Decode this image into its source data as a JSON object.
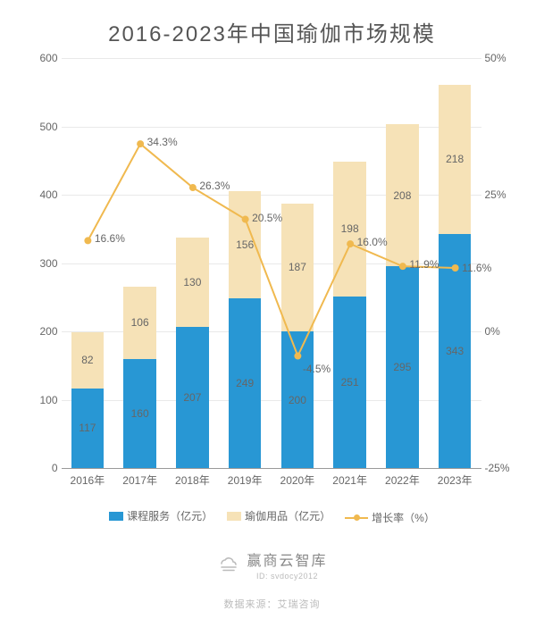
{
  "title": {
    "text": "2016-2023年中国瑜伽市场规模",
    "fontsize": 24,
    "color": "#555555"
  },
  "chart": {
    "type": "stacked-bar-plus-line",
    "categories": [
      "2016年",
      "2017年",
      "2018年",
      "2019年",
      "2020年",
      "2021年",
      "2022年",
      "2023年"
    ],
    "series_bar": [
      {
        "name": "课程服务（亿元）",
        "color": "#2897d4",
        "values": [
          117,
          160,
          207,
          249,
          200,
          251,
          295,
          343
        ]
      },
      {
        "name": "瑜伽用品（亿元）",
        "color": "#f6e2b7",
        "values": [
          82,
          106,
          130,
          156,
          187,
          198,
          208,
          218
        ]
      }
    ],
    "series_line": {
      "name": "增长率（%）",
      "color": "#f0b94f",
      "values": [
        16.6,
        34.3,
        26.3,
        20.5,
        -4.5,
        16.0,
        11.9,
        11.6
      ],
      "marker_radius": 4,
      "line_width": 2
    },
    "y_left": {
      "min": 0,
      "max": 600,
      "step": 100
    },
    "y_right": {
      "min": -25,
      "max": 50,
      "step": 25,
      "suffix": "%"
    },
    "bar_width_ratio": 0.62,
    "background_color": "#ffffff",
    "grid_color": "#e9e9e9",
    "axis_color": "#999999",
    "tick_font_size": 12,
    "label_font_size": 12
  },
  "legend": {
    "items": [
      {
        "label": "课程服务（亿元）",
        "swatch": "#2897d4",
        "kind": "swatch"
      },
      {
        "label": "瑜伽用品（亿元）",
        "swatch": "#f6e2b7",
        "kind": "swatch"
      },
      {
        "label": "增长率（%）",
        "swatch": "#f0b94f",
        "kind": "line"
      }
    ]
  },
  "brand": {
    "name": "赢商云智库",
    "id": "ID: svdocy2012",
    "icon_color": "#bbbbbb"
  },
  "source": {
    "prefix": "数据来源：",
    "text": "艾瑞咨询"
  }
}
